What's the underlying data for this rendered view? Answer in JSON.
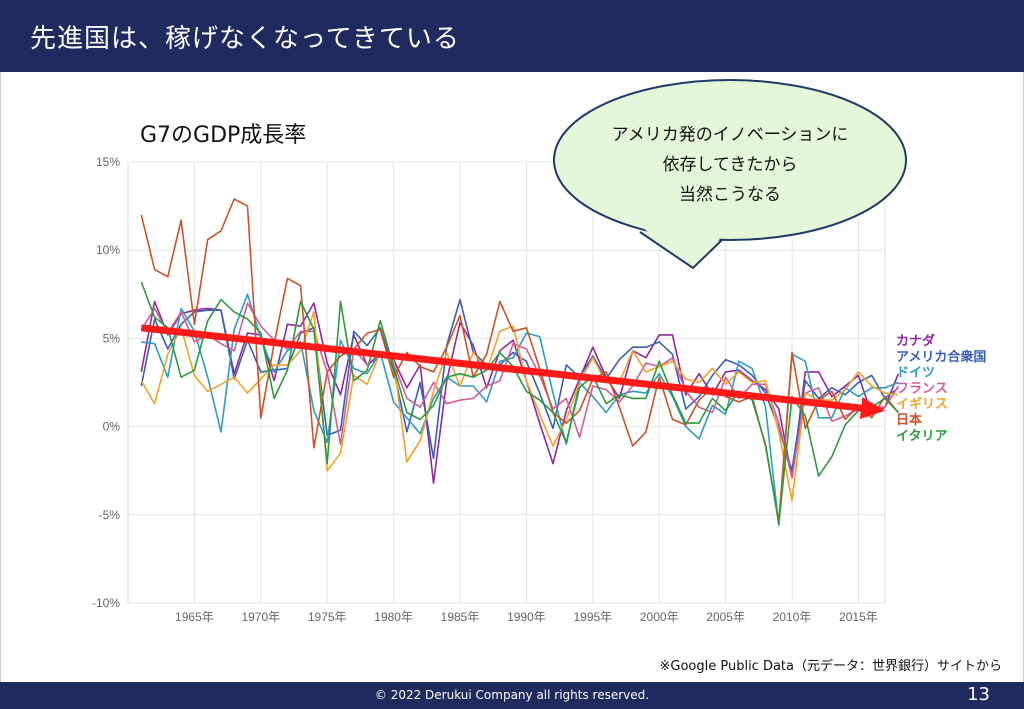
{
  "slide": {
    "title": "先進国は、稼げなくなってきている",
    "copyright": "© 2022 Derukui Company all rights reserved.",
    "page_number": "13",
    "source_note": "※Google Public Data（元データ：世界銀行）サイトから"
  },
  "callout": {
    "lines": [
      "アメリカ発のイノベーションに",
      "依存してきたから",
      "当然こうなる"
    ],
    "fill": "#e5f7d9",
    "stroke": "#1f3a6b"
  },
  "trend_arrow": {
    "color": "#ff1a1a",
    "from": {
      "year": 1961,
      "value": 5.6
    },
    "to": {
      "year": 2017,
      "value": 0.9
    }
  },
  "chart_data": {
    "type": "line",
    "title": "G7のGDP成長率",
    "ylim": [
      -10,
      15
    ],
    "xlim": [
      1960,
      2017
    ],
    "grid": true,
    "y_ticks": [
      {
        "value": 15,
        "label": "15%"
      },
      {
        "value": 10,
        "label": "10%"
      },
      {
        "value": 5,
        "label": "5%"
      },
      {
        "value": 0,
        "label": "0%"
      },
      {
        "value": -5,
        "label": "-5%"
      },
      {
        "value": -10,
        "label": "-10%"
      }
    ],
    "x_ticks": [
      {
        "value": 1965,
        "label": "1965年"
      },
      {
        "value": 1970,
        "label": "1970年"
      },
      {
        "value": 1975,
        "label": "1975年"
      },
      {
        "value": 1980,
        "label": "1980年"
      },
      {
        "value": 1985,
        "label": "1985年"
      },
      {
        "value": 1990,
        "label": "1990年"
      },
      {
        "value": 1995,
        "label": "1995年"
      },
      {
        "value": 2000,
        "label": "2000年"
      },
      {
        "value": 2005,
        "label": "2005年"
      },
      {
        "value": 2010,
        "label": "2010年"
      },
      {
        "value": 2015,
        "label": "2015年"
      }
    ],
    "legend_position": "right",
    "x_start": 1961,
    "series": [
      {
        "name": "カナダ",
        "color": "#8e2a9c",
        "values": [
          3.1,
          7.1,
          5.2,
          6.4,
          6.6,
          6.7,
          6.6,
          3.0,
          5.3,
          5.2,
          2.6,
          5.8,
          5.7,
          7.0,
          3.6,
          1.8,
          5.2,
          3.5,
          4.0,
          3.8,
          2.2,
          3.5,
          -3.2,
          2.6,
          5.9,
          4.6,
          2.2,
          4.3,
          4.9,
          2.6,
          0.2,
          -2.1,
          0.9,
          2.7,
          4.5,
          2.8,
          1.6,
          4.3,
          3.9,
          5.2,
          5.2,
          1.8,
          3.0,
          1.8,
          3.1,
          3.2,
          2.6,
          2.1,
          1.0,
          -2.9,
          3.1,
          3.1,
          1.7,
          2.3,
          2.9,
          0.7,
          1.1,
          3.0
        ]
      },
      {
        "name": "アメリカ合衆国",
        "color": "#3b5fb5",
        "values": [
          2.3,
          6.1,
          4.4,
          5.8,
          6.5,
          6.6,
          6.6,
          2.7,
          4.9,
          3.1,
          3.2,
          3.3,
          5.3,
          5.6,
          -0.5,
          -0.2,
          5.4,
          4.6,
          5.6,
          3.2,
          -0.3,
          2.5,
          -1.8,
          4.6,
          7.2,
          4.2,
          3.5,
          3.5,
          4.2,
          3.7,
          1.9,
          -0.1,
          3.5,
          2.8,
          4.0,
          2.7,
          3.8,
          4.5,
          4.5,
          4.8,
          4.1,
          1.0,
          1.7,
          2.9,
          3.8,
          3.5,
          2.9,
          1.9,
          -0.1,
          -2.5,
          2.6,
          1.6,
          2.2,
          1.8,
          2.5,
          2.9,
          1.6,
          2.2
        ]
      },
      {
        "name": "ドイツ",
        "color": "#2e9bc8",
        "values": [
          4.8,
          4.7,
          2.8,
          6.7,
          5.4,
          2.8,
          -0.3,
          5.5,
          7.5,
          5.0,
          3.1,
          4.3,
          4.8,
          0.9,
          -0.9,
          4.9,
          3.3,
          3.0,
          4.2,
          1.4,
          0.5,
          -0.4,
          1.6,
          2.8,
          2.3,
          2.3,
          1.4,
          3.7,
          3.9,
          5.3,
          5.1,
          1.9,
          -1.0,
          2.5,
          1.7,
          0.8,
          1.8,
          2.0,
          1.9,
          3.0,
          1.7,
          0.0,
          -0.7,
          1.2,
          0.7,
          3.7,
          3.3,
          1.1,
          -5.6,
          4.1,
          3.7,
          0.5,
          0.5,
          2.2,
          1.7,
          2.2,
          2.2,
          2.5
        ]
      },
      {
        "name": "フランス",
        "color": "#d45c9a",
        "values": [
          5.5,
          6.7,
          5.3,
          6.5,
          4.8,
          5.2,
          4.7,
          4.3,
          7.0,
          5.7,
          4.9,
          4.4,
          5.4,
          5.4,
          3.1,
          -1.0,
          4.4,
          3.5,
          4.2,
          3.6,
          1.6,
          1.1,
          2.5,
          1.3,
          1.5,
          1.6,
          2.3,
          2.6,
          4.7,
          4.4,
          2.9,
          1.0,
          1.6,
          -0.6,
          2.3,
          2.1,
          1.4,
          2.3,
          3.6,
          3.4,
          3.9,
          2.0,
          1.1,
          0.8,
          2.8,
          1.6,
          2.4,
          2.4,
          0.2,
          -2.9,
          1.9,
          2.2,
          0.3,
          0.6,
          1.0,
          1.1,
          1.1,
          2.3
        ]
      },
      {
        "name": "イギリス",
        "color": "#f0a32a",
        "values": [
          2.6,
          1.3,
          4.1,
          5.6,
          2.9,
          2.0,
          2.4,
          2.8,
          1.9,
          2.7,
          3.5,
          3.5,
          4.3,
          6.5,
          -2.5,
          -1.5,
          2.9,
          2.4,
          4.2,
          3.7,
          -2.0,
          -0.8,
          2.0,
          4.2,
          2.3,
          4.2,
          3.2,
          5.4,
          5.7,
          2.6,
          0.7,
          -1.1,
          0.4,
          2.5,
          3.9,
          2.5,
          2.5,
          4.3,
          3.1,
          3.4,
          3.7,
          2.7,
          2.5,
          3.3,
          2.4,
          3.1,
          2.5,
          2.6,
          -0.3,
          -4.2,
          1.9,
          1.5,
          1.5,
          2.1,
          3.1,
          2.3,
          1.9,
          1.8
        ]
      },
      {
        "name": "日本",
        "color": "#c8542a",
        "values": [
          12.0,
          8.9,
          8.5,
          11.7,
          5.8,
          10.6,
          11.1,
          12.9,
          12.5,
          0.5,
          4.7,
          8.4,
          8.0,
          -1.2,
          3.1,
          4.0,
          4.4,
          5.3,
          5.5,
          2.8,
          4.2,
          3.4,
          3.1,
          4.5,
          6.3,
          2.8,
          4.1,
          7.1,
          5.4,
          5.6,
          3.3,
          0.8,
          0.2,
          0.9,
          2.7,
          3.1,
          1.1,
          -1.1,
          -0.3,
          2.8,
          0.4,
          0.1,
          1.5,
          2.2,
          1.7,
          1.4,
          1.7,
          -1.1,
          -5.4,
          4.2,
          -0.1,
          1.5,
          2.0,
          0.4,
          1.2,
          0.5,
          1.7,
          0.8
        ]
      },
      {
        "name": "イタリア",
        "color": "#2e9a3a",
        "values": [
          8.2,
          6.2,
          5.6,
          2.8,
          3.2,
          6.0,
          7.2,
          6.5,
          6.1,
          5.3,
          1.6,
          3.2,
          7.1,
          5.5,
          -2.1,
          7.1,
          2.6,
          3.2,
          6.0,
          3.4,
          0.8,
          0.4,
          1.2,
          2.8,
          3.0,
          2.8,
          3.2,
          4.2,
          3.4,
          2.0,
          1.5,
          0.8,
          -0.9,
          2.2,
          2.9,
          1.3,
          1.8,
          1.6,
          1.6,
          3.7,
          1.8,
          0.2,
          0.2,
          1.6,
          0.9,
          2.0,
          1.5,
          -1.0,
          -5.5,
          1.7,
          0.6,
          -2.8,
          -1.7,
          0.1,
          0.9,
          1.1,
          1.6,
          0.8
        ]
      }
    ]
  }
}
